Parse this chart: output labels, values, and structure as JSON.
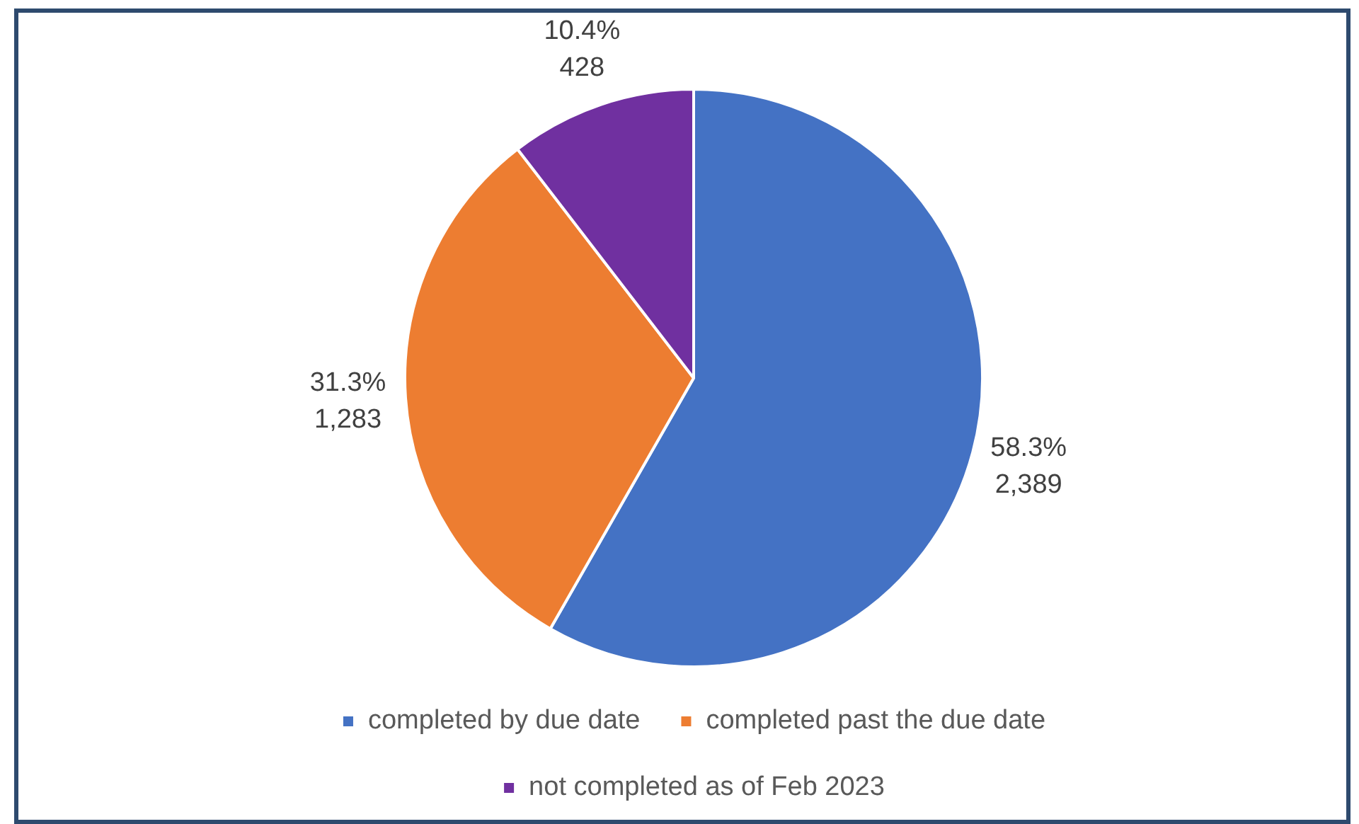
{
  "chart_data": {
    "type": "pie",
    "categories": [
      "completed by due date",
      "completed past the due date",
      "not completed as of Feb 2023"
    ],
    "values": [
      2389,
      1283,
      428
    ],
    "colors": [
      "#4472c4",
      "#ed7d31",
      "#7030a0"
    ],
    "value_labels": [
      "58.3%\n2,389",
      "31.3%\n1,283",
      "10.4%\n428"
    ],
    "legend": "bottom"
  }
}
